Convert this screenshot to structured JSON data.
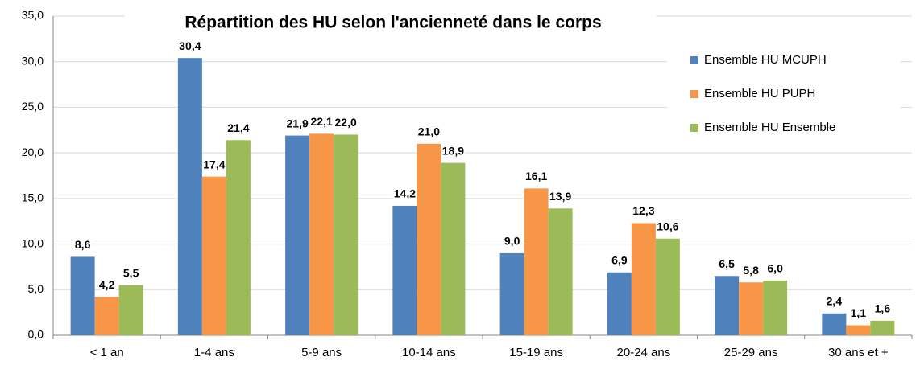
{
  "chart_data": {
    "type": "bar",
    "title": "Répartition des HU selon l'ancienneté dans le corps",
    "categories": [
      "< 1 an",
      "1-4 ans",
      "5-9 ans",
      "10-14 ans",
      "15-19 ans",
      "20-24 ans",
      "25-29 ans",
      "30 ans et +"
    ],
    "series": [
      {
        "name": "Ensemble HU MCUPH",
        "color": "#4f81bd",
        "label_color": "#2f5689",
        "values": [
          8.6,
          30.4,
          21.9,
          14.2,
          9.0,
          6.9,
          6.5,
          2.4
        ],
        "value_labels": [
          "8,6",
          "30,4",
          "21,9",
          "14,2",
          "9,0",
          "6,9",
          "6,5",
          "2,4"
        ]
      },
      {
        "name": "Ensemble HU PUPH",
        "color": "#f79646",
        "label_color": "#c0504d",
        "values": [
          4.2,
          17.4,
          22.1,
          21.0,
          16.1,
          12.3,
          5.8,
          1.1
        ],
        "value_labels": [
          "4,2",
          "17,4",
          "22,1",
          "21,0",
          "16,1",
          "12,3",
          "5,8",
          "1,1"
        ]
      },
      {
        "name": "Ensemble HU Ensemble",
        "color": "#9bbb59",
        "label_color": "#5a7030",
        "values": [
          5.5,
          21.4,
          22.0,
          18.9,
          13.9,
          10.6,
          6.0,
          1.6
        ],
        "value_labels": [
          "5,5",
          "21,4",
          "22,0",
          "18,9",
          "13,9",
          "10,6",
          "6,0",
          "1,6"
        ]
      }
    ],
    "ylim": [
      0,
      35
    ],
    "yticks": [
      {
        "value": 0,
        "label": "0,0"
      },
      {
        "value": 5,
        "label": "5,0"
      },
      {
        "value": 10,
        "label": "10,0"
      },
      {
        "value": 15,
        "label": "15,0"
      },
      {
        "value": 20,
        "label": "20,0"
      },
      {
        "value": 25,
        "label": "25,0"
      },
      {
        "value": 30,
        "label": "30,0"
      },
      {
        "value": 35,
        "label": "35,0"
      }
    ],
    "grid": true,
    "legend": "top-right"
  }
}
